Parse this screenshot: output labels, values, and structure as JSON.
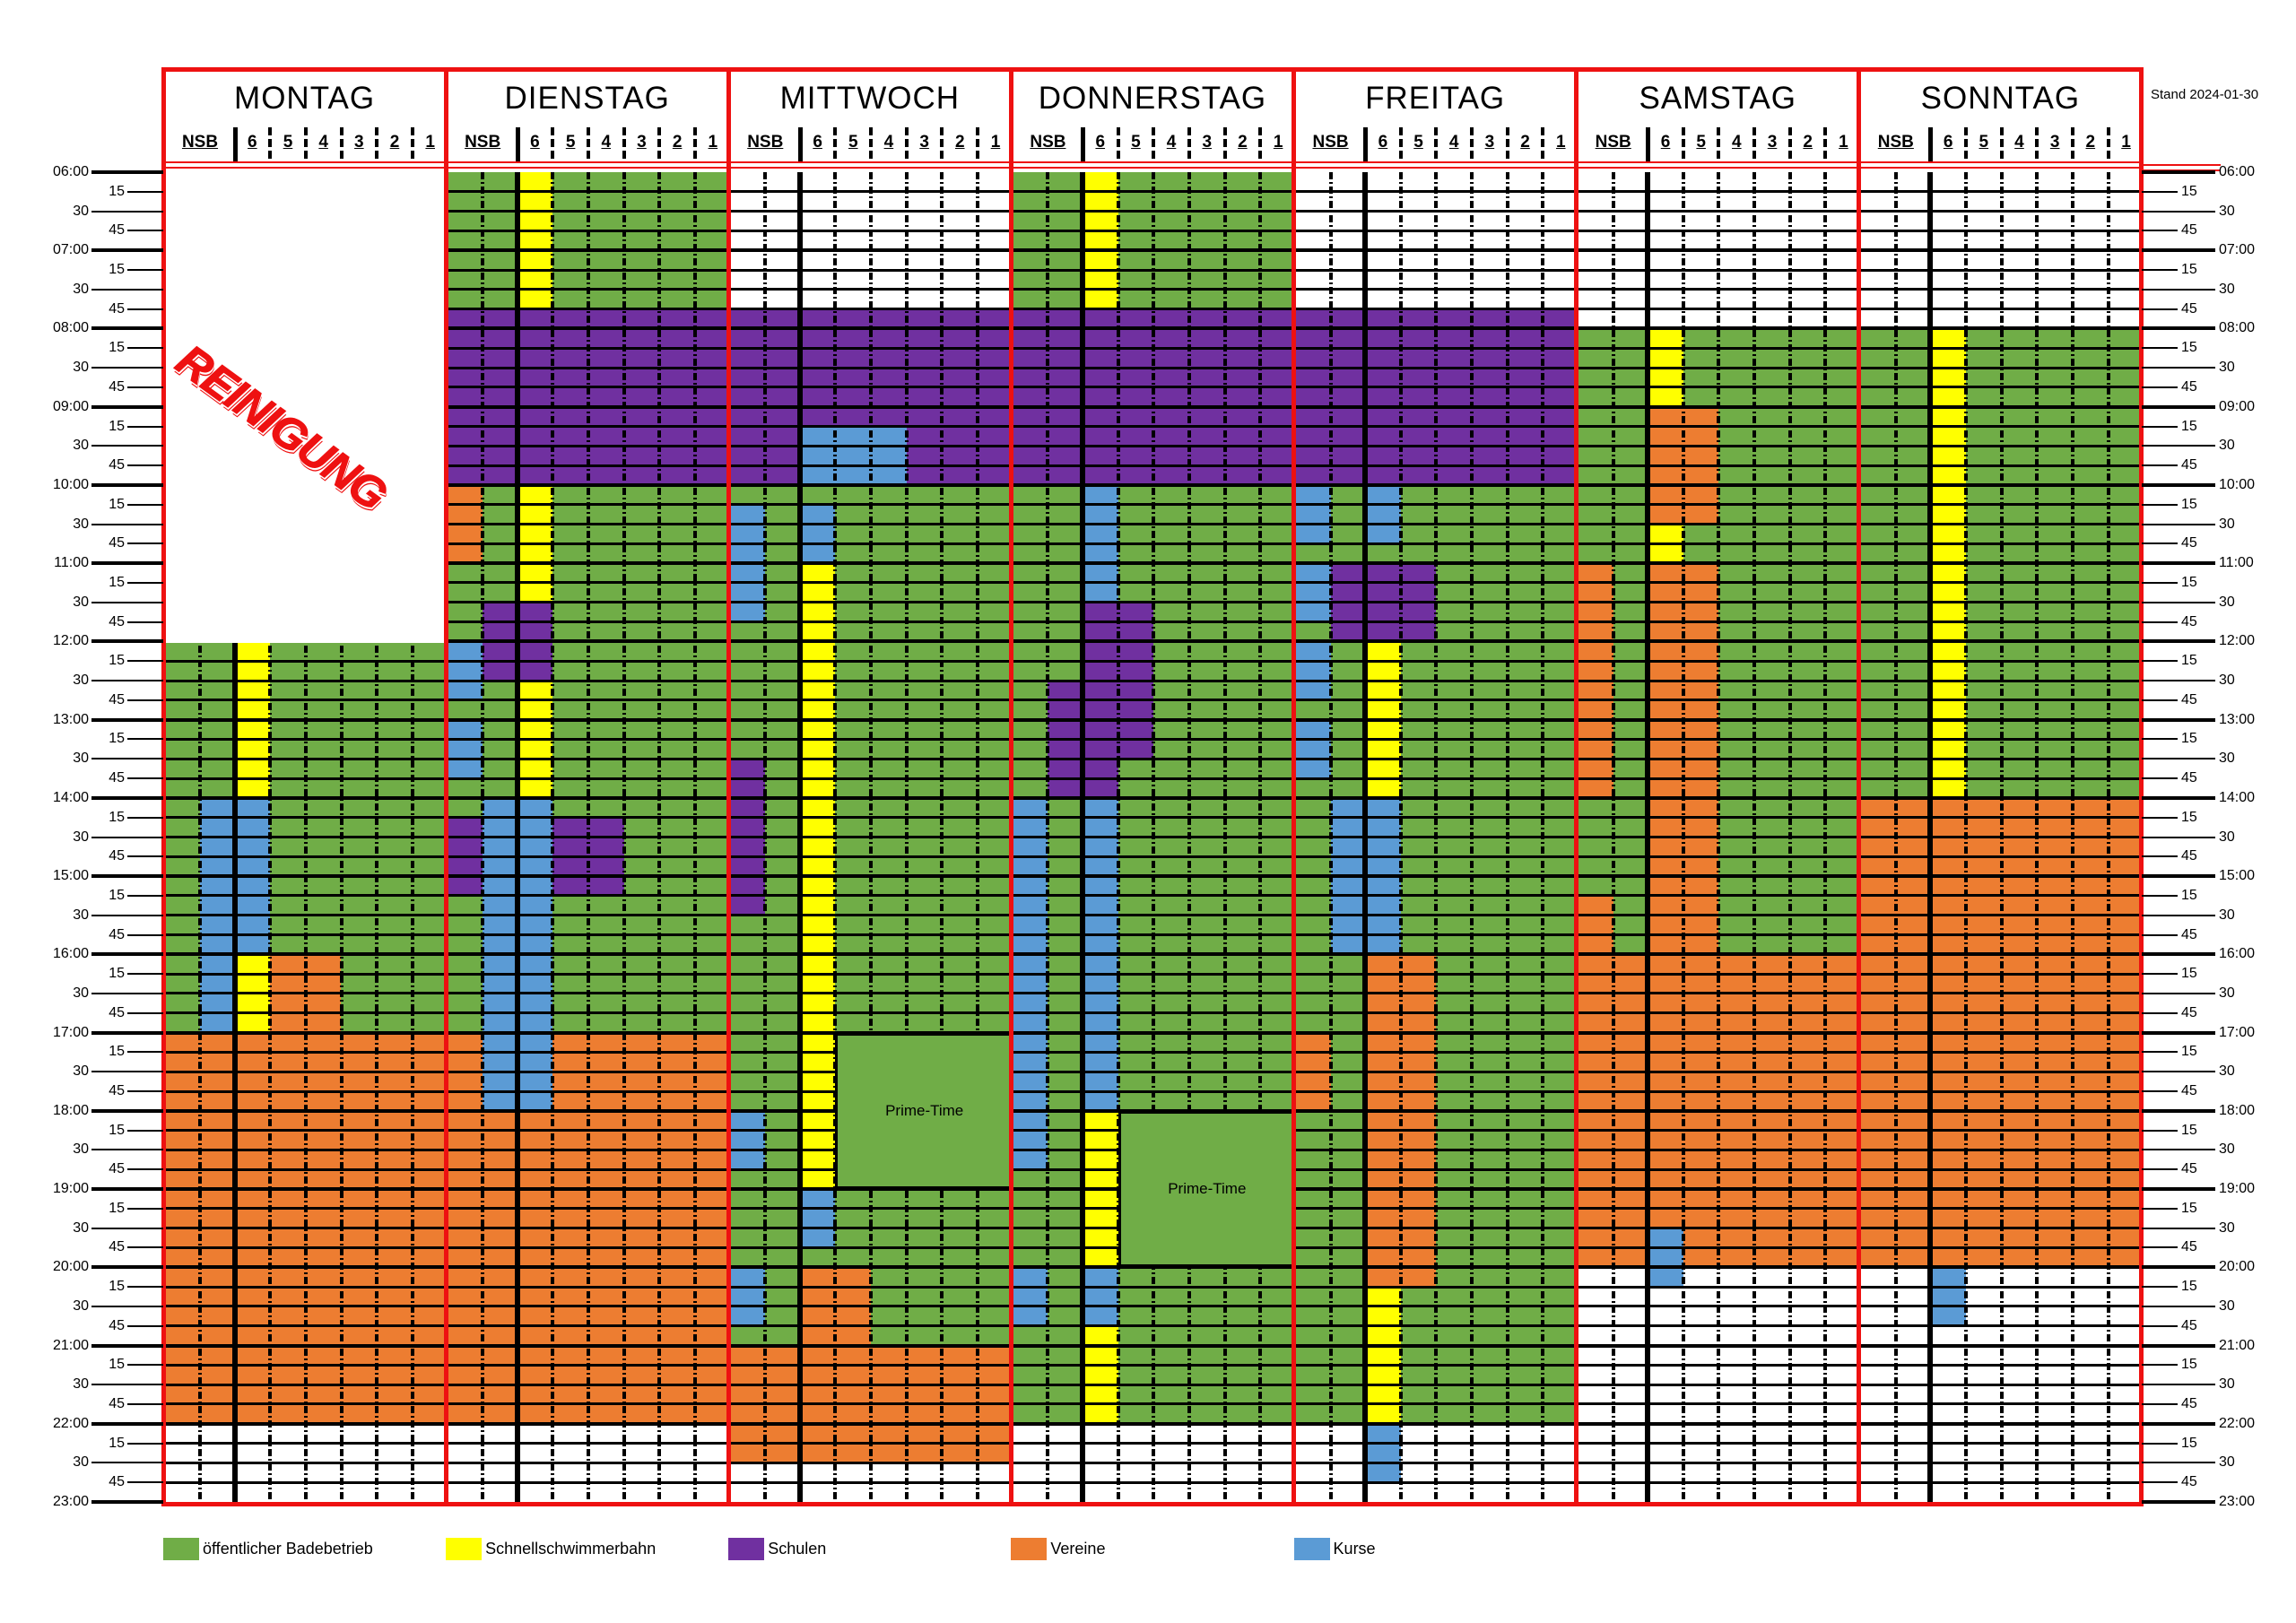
{
  "stand": "Stand 2024-01-30",
  "column_labels": [
    "NSB",
    "6",
    "5",
    "4",
    "3",
    "2",
    "1"
  ],
  "categories": {
    "g": {
      "label": "öffentlicher Badebetrieb",
      "color": "#70ad47"
    },
    "y": {
      "label": "Schnellschwimmerbahn",
      "color": "#ffff00"
    },
    "p": {
      "label": "Schulen",
      "color": "#7030a0"
    },
    "o": {
      "label": "Vereine",
      "color": "#ed7d31"
    },
    "b": {
      "label": "Kurse",
      "color": "#5b9bd5"
    },
    "w": {
      "label": "",
      "color": "#ffffff"
    }
  },
  "legend_order": [
    "g",
    "y",
    "p",
    "o",
    "b"
  ],
  "time_labels": [
    "06:00",
    "15",
    "30",
    "45",
    "07:00",
    "15",
    "30",
    "45",
    "08:00",
    "15",
    "30",
    "45",
    "09:00",
    "15",
    "30",
    "45",
    "10:00",
    "15",
    "30",
    "45",
    "11:00",
    "15",
    "30",
    "45",
    "12:00",
    "15",
    "30",
    "45",
    "13:00",
    "15",
    "30",
    "45",
    "14:00",
    "15",
    "30",
    "45",
    "15:00",
    "15",
    "30",
    "45",
    "16:00",
    "15",
    "30",
    "45",
    "17:00",
    "15",
    "30",
    "45",
    "18:00",
    "15",
    "30",
    "45",
    "19:00",
    "15",
    "30",
    "45",
    "20:00",
    "15",
    "30",
    "45",
    "21:00",
    "15",
    "30",
    "45",
    "22:00",
    "15",
    "30",
    "45",
    "23:00"
  ],
  "days": [
    {
      "name": "MONTAG",
      "blocks": [
        [
          0,
          7,
          "12:00",
          "17:00",
          "g"
        ],
        [
          2,
          2,
          "12:00",
          "14:00",
          "y"
        ],
        [
          1,
          1,
          "14:00",
          "17:00",
          "b"
        ],
        [
          2,
          2,
          "14:00",
          "16:00",
          "b"
        ],
        [
          2,
          2,
          "16:00",
          "17:00",
          "y"
        ],
        [
          3,
          4,
          "16:00",
          "17:00",
          "o"
        ],
        [
          0,
          7,
          "17:00",
          "22:00",
          "o"
        ],
        [
          0,
          7,
          "22:00",
          "23:00",
          "w"
        ]
      ],
      "merged": [
        {
          "cols": [
            0,
            7
          ],
          "from": "06:00",
          "to": "12:00",
          "type": "clean",
          "label": "REINIGUNG"
        }
      ]
    },
    {
      "name": "DIENSTAG",
      "blocks": [
        [
          0,
          7,
          "06:00",
          "07:45",
          "g"
        ],
        [
          2,
          2,
          "06:00",
          "07:45",
          "y"
        ],
        [
          0,
          7,
          "07:45",
          "10:00",
          "p"
        ],
        [
          0,
          7,
          "10:00",
          "17:00",
          "g"
        ],
        [
          0,
          0,
          "10:00",
          "11:00",
          "o"
        ],
        [
          2,
          2,
          "10:00",
          "11:30",
          "y"
        ],
        [
          1,
          2,
          "11:30",
          "12:30",
          "p"
        ],
        [
          0,
          0,
          "12:00",
          "12:45",
          "b"
        ],
        [
          2,
          2,
          "12:30",
          "14:00",
          "y"
        ],
        [
          0,
          0,
          "13:00",
          "13:45",
          "b"
        ],
        [
          0,
          7,
          "17:00",
          "22:00",
          "o"
        ],
        [
          1,
          2,
          "14:00",
          "18:00",
          "b"
        ],
        [
          0,
          0,
          "14:15",
          "15:15",
          "p"
        ],
        [
          3,
          4,
          "14:15",
          "15:15",
          "p"
        ],
        [
          0,
          7,
          "22:00",
          "23:00",
          "w"
        ]
      ],
      "merged": []
    },
    {
      "name": "MITTWOCH",
      "blocks": [
        [
          0,
          7,
          "06:00",
          "07:45",
          "w"
        ],
        [
          0,
          7,
          "07:45",
          "10:00",
          "p"
        ],
        [
          2,
          4,
          "09:15",
          "10:00",
          "b"
        ],
        [
          0,
          7,
          "10:00",
          "21:00",
          "g"
        ],
        [
          0,
          0,
          "10:15",
          "11:45",
          "b"
        ],
        [
          2,
          2,
          "10:15",
          "11:00",
          "b"
        ],
        [
          2,
          2,
          "11:00",
          "19:00",
          "y"
        ],
        [
          0,
          0,
          "13:30",
          "15:30",
          "p"
        ],
        [
          0,
          0,
          "18:00",
          "18:45",
          "b"
        ],
        [
          2,
          2,
          "19:00",
          "19:45",
          "b"
        ],
        [
          0,
          0,
          "20:00",
          "20:45",
          "b"
        ],
        [
          2,
          3,
          "20:00",
          "21:00",
          "o"
        ],
        [
          0,
          7,
          "21:00",
          "22:30",
          "o"
        ],
        [
          0,
          7,
          "22:30",
          "23:00",
          "w"
        ]
      ],
      "merged": [
        {
          "cols": [
            3,
            7
          ],
          "from": "17:00",
          "to": "19:00",
          "type": "prime",
          "label": "Prime-Time"
        }
      ]
    },
    {
      "name": "DONNERSTAG",
      "blocks": [
        [
          0,
          7,
          "06:00",
          "07:45",
          "g"
        ],
        [
          2,
          2,
          "06:00",
          "07:45",
          "y"
        ],
        [
          0,
          7,
          "07:45",
          "10:00",
          "p"
        ],
        [
          0,
          7,
          "10:00",
          "22:00",
          "g"
        ],
        [
          2,
          2,
          "10:00",
          "11:30",
          "b"
        ],
        [
          2,
          2,
          "11:30",
          "14:00",
          "p"
        ],
        [
          3,
          3,
          "11:30",
          "13:30",
          "p"
        ],
        [
          1,
          1,
          "12:30",
          "14:00",
          "p"
        ],
        [
          0,
          0,
          "14:00",
          "18:45",
          "b"
        ],
        [
          2,
          2,
          "14:00",
          "18:00",
          "b"
        ],
        [
          2,
          2,
          "18:00",
          "20:00",
          "y"
        ],
        [
          0,
          0,
          "20:00",
          "20:45",
          "b"
        ],
        [
          2,
          2,
          "20:00",
          "20:45",
          "b"
        ],
        [
          2,
          2,
          "20:45",
          "22:00",
          "y"
        ],
        [
          0,
          7,
          "22:00",
          "23:00",
          "w"
        ]
      ],
      "merged": [
        {
          "cols": [
            3,
            7
          ],
          "from": "18:00",
          "to": "20:00",
          "type": "prime",
          "label": "Prime-Time"
        }
      ]
    },
    {
      "name": "FREITAG",
      "blocks": [
        [
          0,
          7,
          "06:00",
          "07:45",
          "w"
        ],
        [
          0,
          7,
          "07:45",
          "10:00",
          "p"
        ],
        [
          0,
          7,
          "10:00",
          "22:00",
          "g"
        ],
        [
          0,
          0,
          "10:00",
          "10:45",
          "b"
        ],
        [
          2,
          2,
          "10:00",
          "10:45",
          "b"
        ],
        [
          0,
          0,
          "11:00",
          "11:45",
          "b"
        ],
        [
          1,
          3,
          "11:00",
          "12:00",
          "p"
        ],
        [
          0,
          0,
          "12:00",
          "12:45",
          "b"
        ],
        [
          0,
          0,
          "13:00",
          "13:45",
          "b"
        ],
        [
          2,
          2,
          "12:00",
          "14:00",
          "y"
        ],
        [
          1,
          2,
          "14:00",
          "16:00",
          "b"
        ],
        [
          2,
          3,
          "16:00",
          "20:15",
          "o"
        ],
        [
          0,
          0,
          "17:00",
          "18:00",
          "o"
        ],
        [
          2,
          2,
          "20:15",
          "22:00",
          "y"
        ],
        [
          0,
          7,
          "22:00",
          "23:00",
          "w"
        ],
        [
          2,
          2,
          "22:00",
          "22:45",
          "b"
        ]
      ],
      "merged": []
    },
    {
      "name": "SAMSTAG",
      "blocks": [
        [
          0,
          7,
          "06:00",
          "08:00",
          "w"
        ],
        [
          0,
          7,
          "08:00",
          "16:00",
          "g"
        ],
        [
          2,
          2,
          "08:00",
          "09:00",
          "y"
        ],
        [
          2,
          3,
          "09:00",
          "10:30",
          "o"
        ],
        [
          2,
          2,
          "10:30",
          "11:00",
          "y"
        ],
        [
          2,
          3,
          "11:00",
          "16:00",
          "o"
        ],
        [
          0,
          0,
          "11:00",
          "14:00",
          "o"
        ],
        [
          0,
          0,
          "15:15",
          "16:00",
          "o"
        ],
        [
          0,
          7,
          "16:00",
          "20:00",
          "o"
        ],
        [
          0,
          7,
          "20:00",
          "23:00",
          "w"
        ],
        [
          2,
          2,
          "19:30",
          "20:15",
          "b"
        ]
      ],
      "merged": []
    },
    {
      "name": "SONNTAG",
      "blocks": [
        [
          0,
          7,
          "06:00",
          "08:00",
          "w"
        ],
        [
          0,
          7,
          "08:00",
          "14:00",
          "g"
        ],
        [
          2,
          2,
          "08:00",
          "14:00",
          "y"
        ],
        [
          0,
          7,
          "14:00",
          "20:00",
          "o"
        ],
        [
          0,
          7,
          "20:00",
          "23:00",
          "w"
        ],
        [
          2,
          2,
          "20:00",
          "20:45",
          "b"
        ]
      ],
      "merged": []
    }
  ]
}
